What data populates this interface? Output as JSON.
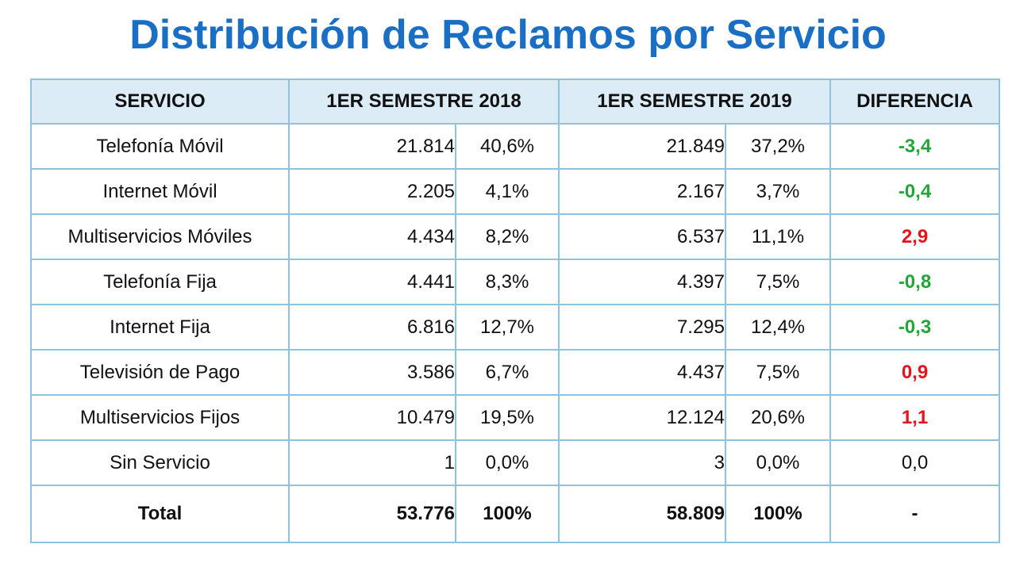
{
  "title": "Distribución de Reclamos por Servicio",
  "headers": {
    "service": "SERVICIO",
    "sem2018": "1ER SEMESTRE 2018",
    "sem2019": "1ER SEMESTRE 2019",
    "diff": "DIFERENCIA"
  },
  "rows": [
    {
      "service": "Telefonía Móvil",
      "c2018": "21.814",
      "p2018": "40,6%",
      "c2019": "21.849",
      "p2019": "37,2%",
      "diff": "-3,4"
    },
    {
      "service": "Internet Móvil",
      "c2018": "2.205",
      "p2018": "4,1%",
      "c2019": "2.167",
      "p2019": "3,7%",
      "diff": "-0,4"
    },
    {
      "service": "Multiservicios Móviles",
      "c2018": "4.434",
      "p2018": "8,2%",
      "c2019": "6.537",
      "p2019": "11,1%",
      "diff": "2,9"
    },
    {
      "service": "Telefonía Fija",
      "c2018": "4.441",
      "p2018": "8,3%",
      "c2019": "4.397",
      "p2019": "7,5%",
      "diff": "-0,8"
    },
    {
      "service": "Internet Fija",
      "c2018": "6.816",
      "p2018": "12,7%",
      "c2019": "7.295",
      "p2019": "12,4%",
      "diff": "-0,3"
    },
    {
      "service": "Televisión de Pago",
      "c2018": "3.586",
      "p2018": "6,7%",
      "c2019": "4.437",
      "p2019": "7,5%",
      "diff": "0,9"
    },
    {
      "service": "Multiservicios Fijos",
      "c2018": "10.479",
      "p2018": "19,5%",
      "c2019": "12.124",
      "p2019": "20,6%",
      "diff": "1,1"
    },
    {
      "service": "Sin Servicio",
      "c2018": "1",
      "p2018": "0,0%",
      "c2019": "3",
      "p2019": "0,0%",
      "diff": "0,0"
    }
  ],
  "total": {
    "label": "Total",
    "c2018": "53.776",
    "p2018": "100%",
    "c2019": "58.809",
    "p2019": "100%",
    "diff": "-"
  },
  "colors": {
    "title": "#1a6fc4",
    "negative_diff": "#22a63a",
    "positive_diff": "#e3141b",
    "border": "#8cc4df",
    "header_bg": "#dcecf7"
  }
}
